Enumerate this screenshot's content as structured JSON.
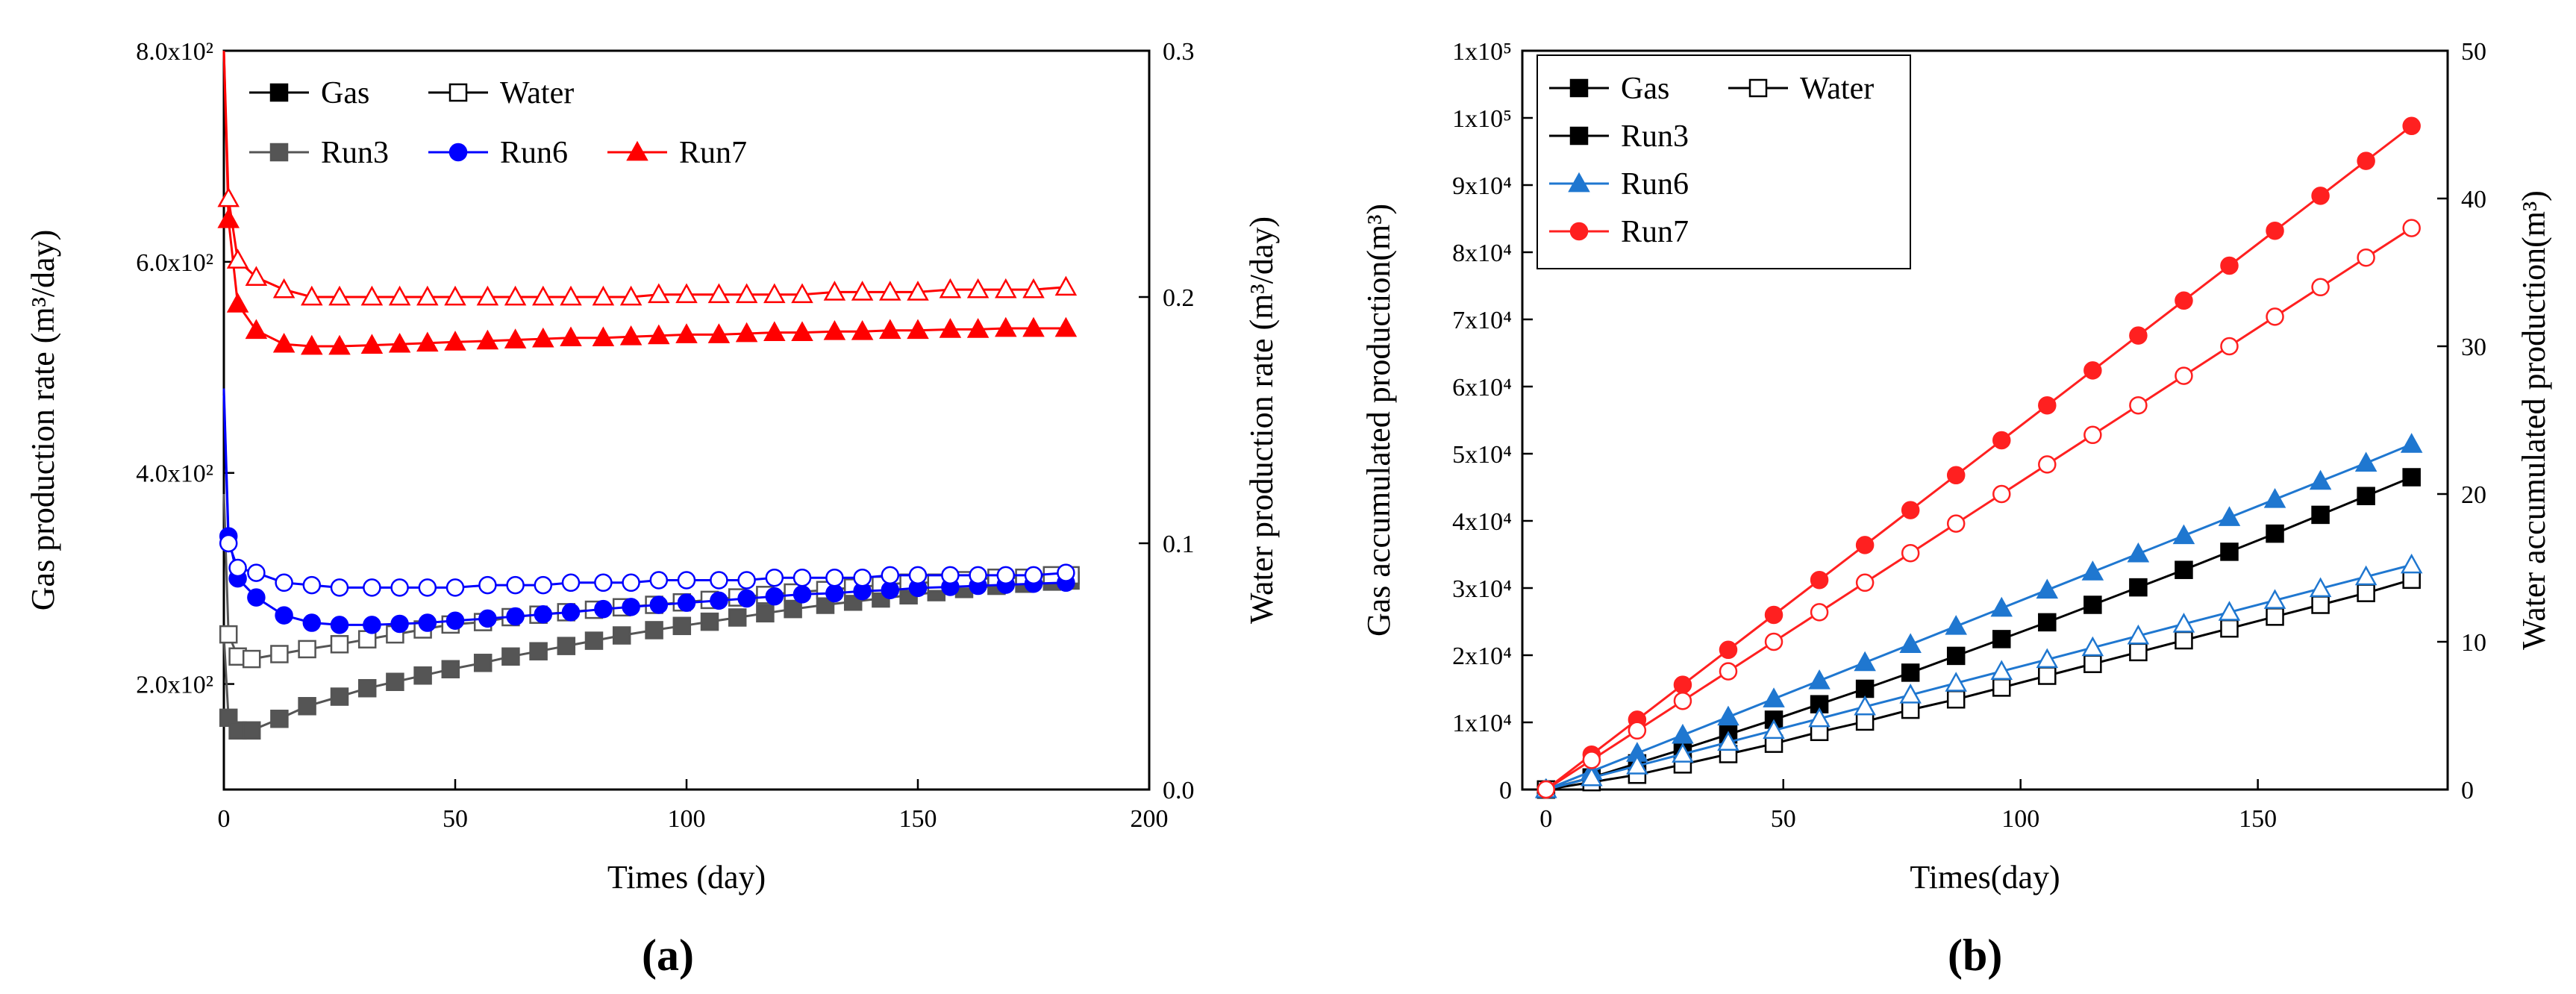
{
  "chart_data": [
    {
      "type": "line",
      "panel_label": "(a)",
      "xlabel": "Times (day)",
      "ylabel": "Gas production rate (m³/day)",
      "y2label": "Water production rate (m³/day)",
      "xlim": [
        0,
        200
      ],
      "ylim": [
        100,
        800
      ],
      "y2lim": [
        0,
        0.3
      ],
      "x_ticks": [
        "0",
        "50",
        "100",
        "150",
        "200"
      ],
      "y_ticks": [
        "2.0x10²",
        "4.0x10²",
        "6.0x10²",
        "8.0x10²"
      ],
      "y2_ticks": [
        "0.0",
        "0.1",
        "0.2",
        "0.3"
      ],
      "legend": {
        "position": "top-left",
        "style_items": [
          {
            "label": "Gas",
            "marker": "filled-square",
            "color": "#000000"
          },
          {
            "label": "Water",
            "marker": "open-square",
            "color": "#000000"
          }
        ],
        "run_items": [
          {
            "label": "Run3",
            "marker": "filled-square",
            "color": "#555555"
          },
          {
            "label": "Run6",
            "marker": "filled-circle",
            "color": "#0000ff"
          },
          {
            "label": "Run7",
            "marker": "filled-triangle",
            "color": "#ff0000"
          }
        ]
      },
      "series": [
        {
          "name": "Run3 Gas",
          "axis": "left",
          "color": "#555555",
          "marker": "filled-square",
          "x": [
            0,
            1,
            3,
            6,
            12,
            18,
            25,
            31,
            37,
            43,
            49,
            56,
            62,
            68,
            74,
            80,
            86,
            93,
            99,
            105,
            111,
            117,
            123,
            130,
            136,
            142,
            148,
            154,
            160,
            167,
            173,
            179,
            183
          ],
          "y": [
            245,
            168,
            156,
            156,
            167,
            179,
            188,
            196,
            202,
            208,
            214,
            220,
            226,
            231,
            236,
            241,
            246,
            251,
            255,
            259,
            263,
            267,
            271,
            275,
            278,
            281,
            284,
            287,
            290,
            293,
            295,
            297,
            298
          ]
        },
        {
          "name": "Run3 Water",
          "axis": "right",
          "color": "#555555",
          "marker": "open-square",
          "x": [
            0,
            1,
            3,
            6,
            12,
            18,
            25,
            31,
            37,
            43,
            49,
            56,
            62,
            68,
            74,
            80,
            86,
            93,
            99,
            105,
            111,
            117,
            123,
            130,
            136,
            142,
            148,
            154,
            160,
            167,
            173,
            179,
            183
          ],
          "y": [
            0.12,
            0.063,
            0.054,
            0.053,
            0.055,
            0.057,
            0.059,
            0.061,
            0.063,
            0.065,
            0.067,
            0.068,
            0.07,
            0.071,
            0.072,
            0.073,
            0.074,
            0.075,
            0.076,
            0.077,
            0.078,
            0.079,
            0.08,
            0.081,
            0.082,
            0.083,
            0.084,
            0.084,
            0.085,
            0.086,
            0.086,
            0.087,
            0.087
          ]
        },
        {
          "name": "Run6 Gas",
          "axis": "left",
          "color": "#0000ff",
          "marker": "filled-circle",
          "x": [
            0,
            1,
            3,
            7,
            13,
            19,
            25,
            32,
            38,
            44,
            50,
            57,
            63,
            69,
            75,
            82,
            88,
            94,
            100,
            107,
            113,
            119,
            125,
            132,
            138,
            144,
            150,
            157,
            163,
            169,
            175,
            182
          ],
          "y": [
            480,
            340,
            300,
            282,
            265,
            258,
            256,
            256,
            257,
            258,
            260,
            262,
            264,
            266,
            268,
            271,
            273,
            275,
            277,
            279,
            281,
            283,
            285,
            286,
            288,
            289,
            291,
            292,
            293,
            294,
            295,
            296
          ]
        },
        {
          "name": "Run6 Water",
          "axis": "right",
          "color": "#0000ff",
          "marker": "open-circle",
          "x": [
            0,
            1,
            3,
            7,
            13,
            19,
            25,
            32,
            38,
            44,
            50,
            57,
            63,
            69,
            75,
            82,
            88,
            94,
            100,
            107,
            113,
            119,
            125,
            132,
            138,
            144,
            150,
            157,
            163,
            169,
            175,
            182
          ],
          "y": [
            0.16,
            0.1,
            0.09,
            0.088,
            0.084,
            0.083,
            0.082,
            0.082,
            0.082,
            0.082,
            0.082,
            0.083,
            0.083,
            0.083,
            0.084,
            0.084,
            0.084,
            0.085,
            0.085,
            0.085,
            0.085,
            0.086,
            0.086,
            0.086,
            0.086,
            0.087,
            0.087,
            0.087,
            0.087,
            0.087,
            0.087,
            0.088
          ]
        },
        {
          "name": "Run7 Gas",
          "axis": "left",
          "color": "#ff0000",
          "marker": "filled-triangle",
          "x": [
            0,
            1,
            3,
            7,
            13,
            19,
            25,
            32,
            38,
            44,
            50,
            57,
            63,
            69,
            75,
            82,
            88,
            94,
            100,
            107,
            113,
            119,
            125,
            132,
            138,
            144,
            150,
            157,
            163,
            169,
            175,
            182
          ],
          "y": [
            800,
            640,
            560,
            535,
            522,
            520,
            520,
            521,
            522,
            523,
            524,
            525,
            526,
            527,
            528,
            528,
            529,
            530,
            531,
            531,
            532,
            533,
            533,
            534,
            534,
            535,
            535,
            536,
            536,
            537,
            537,
            537
          ]
        },
        {
          "name": "Run7 Water",
          "axis": "right",
          "color": "#ff0000",
          "marker": "open-triangle",
          "x": [
            0,
            1,
            3,
            7,
            13,
            19,
            25,
            32,
            38,
            44,
            50,
            57,
            63,
            69,
            75,
            82,
            88,
            94,
            100,
            107,
            113,
            119,
            125,
            132,
            138,
            144,
            150,
            157,
            163,
            169,
            175,
            182
          ],
          "y": [
            0.3,
            0.24,
            0.215,
            0.208,
            0.203,
            0.2,
            0.2,
            0.2,
            0.2,
            0.2,
            0.2,
            0.2,
            0.2,
            0.2,
            0.2,
            0.2,
            0.2,
            0.201,
            0.201,
            0.201,
            0.201,
            0.201,
            0.201,
            0.202,
            0.202,
            0.202,
            0.202,
            0.203,
            0.203,
            0.203,
            0.203,
            0.204
          ]
        }
      ]
    },
    {
      "type": "line",
      "panel_label": "(b)",
      "xlabel": "Times(day)",
      "ylabel": "Gas accumulated production(m³)",
      "y2label": "Water accumulated production(m³)",
      "xlim": [
        -5,
        190
      ],
      "ylim": [
        0,
        110000
      ],
      "y2lim": [
        0,
        50
      ],
      "x_ticks": [
        "0",
        "50",
        "100",
        "150"
      ],
      "y_ticks": [
        "0",
        "1x10⁴",
        "2x10⁴",
        "3x10⁴",
        "4x10⁴",
        "5x10⁴",
        "6x10⁴",
        "7x10⁴",
        "8x10⁴",
        "9x10⁴",
        "1x10⁵",
        "1x10⁵"
      ],
      "y2_ticks": [
        "0",
        "10",
        "20",
        "30",
        "40",
        "50"
      ],
      "legend": {
        "position": "top-left",
        "style_items": [
          {
            "label": "Gas",
            "marker": "filled-square",
            "color": "#000000"
          },
          {
            "label": "Water",
            "marker": "open-square",
            "color": "#000000"
          }
        ],
        "run_items": [
          {
            "label": "Run3",
            "marker": "filled-square",
            "color": "#000000"
          },
          {
            "label": "Run6",
            "marker": "filled-triangle",
            "color": "#1f77d0"
          },
          {
            "label": "Run7",
            "marker": "filled-circle",
            "color": "#ff2020"
          }
        ]
      },
      "series": [
        {
          "name": "Run3 Gas",
          "axis": "left",
          "color": "#000000",
          "marker": "filled-square",
          "x": [
            0,
            9.6,
            19.2,
            28.8,
            38.4,
            48,
            57.6,
            67.2,
            76.8,
            86.4,
            96,
            105.6,
            115.2,
            124.8,
            134.4,
            144,
            153.6,
            163.2,
            172.8,
            182.4
          ],
          "y": [
            0,
            1800,
            3900,
            6000,
            8200,
            10400,
            12700,
            15000,
            17400,
            19900,
            22400,
            24900,
            27500,
            30100,
            32700,
            35400,
            38100,
            40900,
            43700,
            46500
          ]
        },
        {
          "name": "Run3 Water",
          "axis": "right",
          "color": "#000000",
          "marker": "open-square",
          "x": [
            0,
            9.6,
            19.2,
            28.8,
            38.4,
            48,
            57.6,
            67.2,
            76.8,
            86.4,
            96,
            105.6,
            115.2,
            124.8,
            134.4,
            144,
            153.6,
            163.2,
            172.8,
            182.4
          ],
          "y": [
            0,
            0.5,
            1.0,
            1.7,
            2.4,
            3.1,
            3.9,
            4.6,
            5.4,
            6.1,
            6.9,
            7.7,
            8.5,
            9.3,
            10.1,
            10.9,
            11.7,
            12.5,
            13.3,
            14.2
          ]
        },
        {
          "name": "Run6 Gas",
          "axis": "left",
          "color": "#1f77d0",
          "marker": "filled-triangle",
          "x": [
            0,
            9.6,
            19.2,
            28.8,
            38.4,
            48,
            57.6,
            67.2,
            76.8,
            86.4,
            96,
            105.6,
            115.2,
            124.8,
            134.4,
            144,
            153.6,
            163.2,
            172.8,
            182.4
          ],
          "y": [
            0,
            2700,
            5400,
            8100,
            10800,
            13500,
            16200,
            18900,
            21600,
            24300,
            27000,
            29700,
            32400,
            35100,
            37800,
            40500,
            43200,
            45900,
            48600,
            51400
          ]
        },
        {
          "name": "Run6 Water",
          "axis": "right",
          "color": "#1f77d0",
          "marker": "open-triangle",
          "x": [
            0,
            9.6,
            19.2,
            28.8,
            38.4,
            48,
            57.6,
            67.2,
            76.8,
            86.4,
            96,
            105.6,
            115.2,
            124.8,
            134.4,
            144,
            153.6,
            163.2,
            172.8,
            182.4
          ],
          "y": [
            0,
            0.8,
            1.6,
            2.4,
            3.2,
            4.0,
            4.8,
            5.6,
            6.4,
            7.2,
            8.0,
            8.8,
            9.6,
            10.4,
            11.2,
            12.0,
            12.8,
            13.6,
            14.4,
            15.2
          ]
        },
        {
          "name": "Run7 Gas",
          "axis": "left",
          "color": "#ff2020",
          "marker": "filled-circle",
          "x": [
            0,
            9.6,
            19.2,
            28.8,
            38.4,
            48,
            57.6,
            67.2,
            76.8,
            86.4,
            96,
            105.6,
            115.2,
            124.8,
            134.4,
            144,
            153.6,
            163.2,
            172.8,
            182.4
          ],
          "y": [
            0,
            5200,
            10400,
            15600,
            20800,
            26000,
            31200,
            36400,
            41600,
            46800,
            52000,
            57200,
            62400,
            67600,
            72800,
            78000,
            83200,
            88400,
            93600,
            98800
          ]
        },
        {
          "name": "Run7 Water",
          "axis": "right",
          "color": "#ff2020",
          "marker": "open-circle",
          "x": [
            0,
            9.6,
            19.2,
            28.8,
            38.4,
            48,
            57.6,
            67.2,
            76.8,
            86.4,
            96,
            105.6,
            115.2,
            124.8,
            134.4,
            144,
            153.6,
            163.2,
            172.8,
            182.4
          ],
          "y": [
            0,
            2.0,
            4.0,
            6.0,
            8.0,
            10.0,
            12.0,
            14.0,
            16.0,
            18.0,
            20.0,
            22.0,
            24.0,
            26.0,
            28.0,
            30.0,
            32.0,
            34.0,
            36.0,
            38.0
          ]
        }
      ]
    }
  ],
  "panels": [
    {
      "label": "(a)"
    },
    {
      "label": "(b)"
    }
  ]
}
